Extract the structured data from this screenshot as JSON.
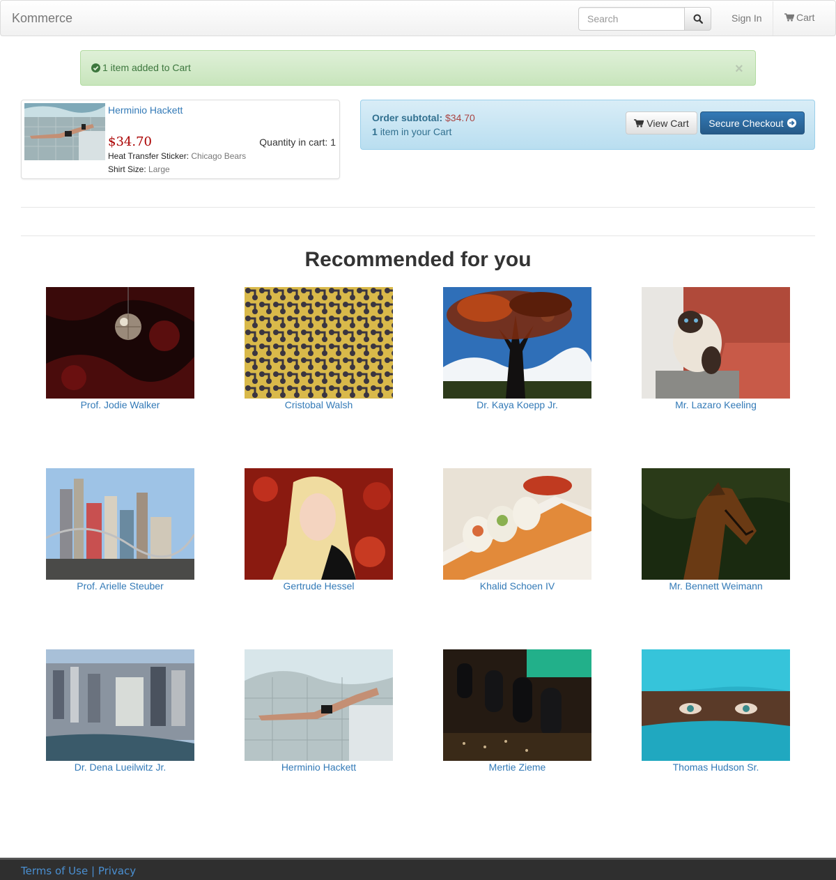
{
  "navbar": {
    "brand": "Kommerce",
    "search_placeholder": "Search",
    "sign_in": "Sign In",
    "cart": "Cart"
  },
  "alert": {
    "message": "1 item added to Cart",
    "close": "×"
  },
  "cart_item": {
    "name": "Herminio Hackett",
    "price": "$34.70",
    "quantity_label": "Quantity in cart: 1",
    "options": [
      {
        "label": "Heat Transfer Sticker:",
        "value": "Chicago Bears"
      },
      {
        "label": "Shirt Size:",
        "value": "Large"
      }
    ]
  },
  "summary": {
    "subtotal_label": "Order subtotal:",
    "subtotal_value": "$34.70",
    "count": "1",
    "count_suffix": "item in your Cart",
    "view_cart": "View Cart",
    "checkout": "Secure Checkout"
  },
  "recommended": {
    "title": "Recommended for you",
    "items": [
      {
        "name": "Prof. Jodie Walker"
      },
      {
        "name": "Cristobal Walsh"
      },
      {
        "name": "Dr. Kaya Koepp Jr."
      },
      {
        "name": "Mr. Lazaro Keeling"
      },
      {
        "name": "Prof. Arielle Steuber"
      },
      {
        "name": "Gertrude Hessel"
      },
      {
        "name": "Khalid Schoen IV"
      },
      {
        "name": "Mr. Bennett Weimann"
      },
      {
        "name": "Dr. Dena Lueilwitz Jr."
      },
      {
        "name": "Herminio Hackett"
      },
      {
        "name": "Mertie Zieme"
      },
      {
        "name": "Thomas Hudson Sr."
      }
    ]
  },
  "footer": {
    "terms": "Terms of Use",
    "separator": "|",
    "privacy": "Privacy"
  }
}
